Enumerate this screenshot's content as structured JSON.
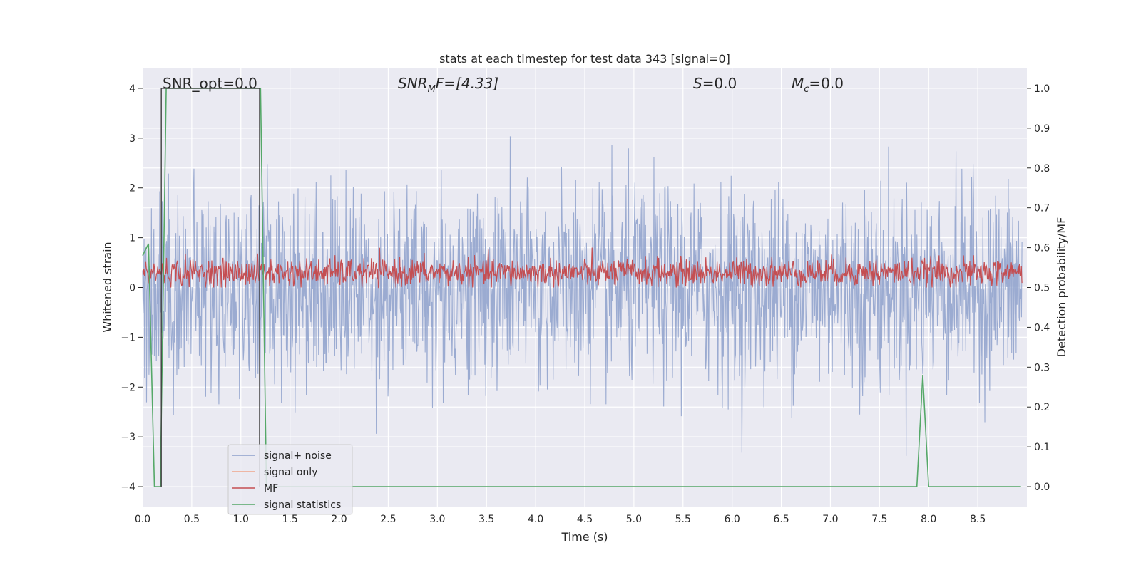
{
  "chart_data": {
    "type": "line",
    "title": "stats at each timestep for test data 343 [signal=0]",
    "xlabel": "Time (s)",
    "ylabel_left": "Whitened strain",
    "ylabel_right": "Detection probability/MF",
    "xlim": [
      0.0,
      9.0
    ],
    "ylim_left": [
      -4.4,
      4.4
    ],
    "ylim_right": [
      -0.05,
      1.05
    ],
    "x_ticks": [
      "0.0",
      "0.5",
      "1.0",
      "1.5",
      "2.0",
      "2.5",
      "3.0",
      "3.5",
      "4.0",
      "4.5",
      "5.0",
      "5.5",
      "6.0",
      "6.5",
      "7.0",
      "7.5",
      "8.0",
      "8.5"
    ],
    "y_ticks_left": [
      "4",
      "3",
      "2",
      "1",
      "0",
      "−1",
      "−2",
      "−3",
      "−4"
    ],
    "y_ticks_right": [
      "1.0",
      "0.9",
      "0.8",
      "0.7",
      "0.6",
      "0.5",
      "0.4",
      "0.3",
      "0.2",
      "0.1",
      "0.0"
    ],
    "grid": true,
    "annotations": {
      "snr_opt": "SNR_opt=0.0",
      "snr_mf_base": "SNR",
      "snr_mf_sub": "M",
      "snr_mf_rest": "F=[4.33]",
      "s_label": "S",
      "s_rest": "=0.0",
      "mc_label": "M",
      "mc_sub": "c",
      "mc_rest": "=0.0"
    },
    "legend_position": "lower-left",
    "series": [
      {
        "name": "signal+ noise",
        "color": "#8da0cb",
        "description_kind": "whitened strain noise, amplitude about ±3"
      },
      {
        "name": "signal only",
        "color": "#f0a58a",
        "values": []
      },
      {
        "name": "MF",
        "color": "#c44e52"
      },
      {
        "name": "signal statistics",
        "color": "#55a868",
        "x": [
          0.0,
          0.06,
          0.12,
          0.18,
          0.24,
          0.3,
          1.14,
          1.2,
          1.26,
          7.88,
          7.94,
          8.0,
          8.94
        ],
        "y": [
          0.58,
          0.61,
          0.0,
          0.0,
          1.0,
          1.0,
          1.0,
          1.0,
          0.0,
          0.0,
          0.28,
          0.0,
          0.0
        ]
      },
      {
        "name": "",
        "color": "#404040",
        "x": [
          0.19,
          0.19,
          1.19,
          1.19
        ],
        "y": [
          0.0,
          1.0,
          1.0,
          0.0
        ]
      }
    ]
  }
}
